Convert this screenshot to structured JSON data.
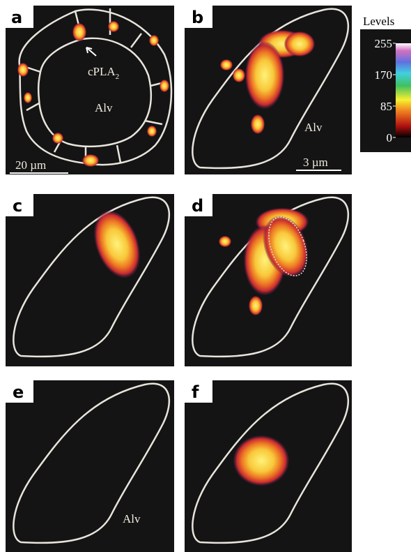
{
  "panels": [
    {
      "label": "a",
      "annotations": [
        "Alv"
      ],
      "arrow_label": {
        "text": "cPLA",
        "subscript": "2"
      },
      "scale_bar": "20 µm"
    },
    {
      "label": "b",
      "annotations": [
        "Alv"
      ],
      "scale_bar": "3 µm"
    },
    {
      "label": "c"
    },
    {
      "label": "d"
    },
    {
      "label": "e",
      "annotations": [
        "Alv"
      ]
    },
    {
      "label": "f"
    }
  ],
  "colorbar": {
    "title": "Levels",
    "ticks": [
      255,
      170,
      85,
      0
    ],
    "max": 255
  }
}
